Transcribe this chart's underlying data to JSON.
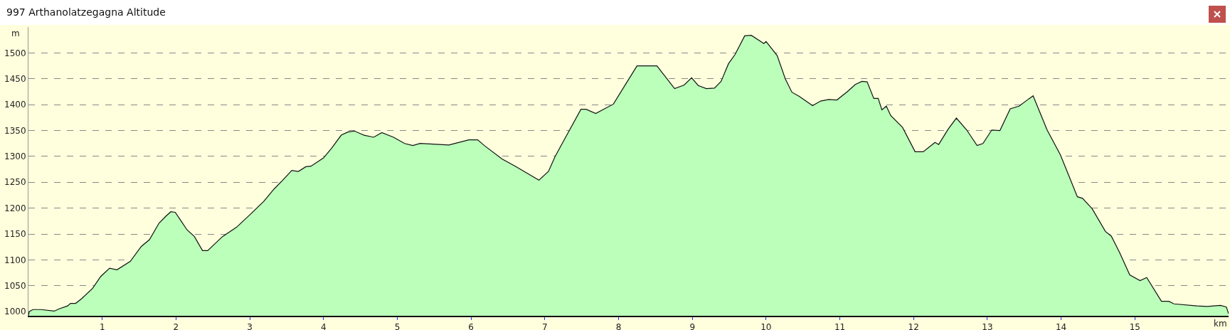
{
  "chart_data": {
    "type": "area",
    "title": "997 Arthanolatzegagna Altitude",
    "xlabel": "km",
    "ylabel": "m",
    "x": [
      0,
      0.01,
      0.06,
      0.17,
      0.35,
      0.41,
      0.53,
      0.57,
      0.64,
      0.72,
      0.87,
      0.98,
      1.1,
      1.2,
      1.38,
      1.53,
      1.64,
      1.77,
      1.86,
      1.93,
      1.99,
      2.15,
      2.25,
      2.36,
      2.43,
      2.63,
      2.82,
      3.0,
      3.19,
      3.33,
      3.44,
      3.57,
      3.66,
      3.76,
      3.83,
      4.0,
      4.11,
      4.24,
      4.33,
      4.42,
      4.55,
      4.68,
      4.79,
      4.95,
      5.1,
      5.21,
      5.31,
      5.7,
      5.97,
      6.09,
      6.18,
      6.42,
      6.6,
      6.92,
      7.05,
      7.14,
      7.29,
      7.49,
      7.56,
      7.69,
      7.93,
      8.12,
      8.25,
      8.52,
      8.76,
      8.89,
      8.99,
      9.08,
      9.19,
      9.3,
      9.39,
      9.49,
      9.58,
      9.71,
      9.8,
      9.97,
      10.0,
      10.15,
      10.26,
      10.35,
      10.45,
      10.63,
      10.74,
      10.85,
      10.96,
      11.1,
      11.21,
      11.3,
      11.37,
      11.46,
      11.52,
      11.57,
      11.63,
      11.69,
      11.85,
      12.02,
      12.13,
      12.29,
      12.34,
      12.47,
      12.58,
      12.72,
      12.86,
      12.94,
      13.06,
      13.17,
      13.31,
      13.43,
      13.56,
      13.62,
      13.81,
      13.99,
      14.22,
      14.29,
      14.42,
      14.6,
      14.68,
      14.79,
      14.93,
      15.07,
      15.16,
      15.36,
      15.46,
      15.53,
      15.84,
      15.98,
      16.16,
      16.24,
      16.27
    ],
    "series": [
      {
        "color": "#bbffbb",
        "values": [
          992,
          1000,
          1004,
          1004,
          1001,
          1005,
          1011,
          1016,
          1016,
          1025,
          1045,
          1068,
          1084,
          1081,
          1097,
          1126,
          1139,
          1171,
          1184,
          1193,
          1192,
          1158,
          1145,
          1118,
          1118,
          1145,
          1163,
          1187,
          1213,
          1237,
          1253,
          1273,
          1271,
          1280,
          1281,
          1297,
          1316,
          1341,
          1347,
          1349,
          1341,
          1337,
          1346,
          1337,
          1325,
          1321,
          1325,
          1322,
          1332,
          1332,
          1321,
          1295,
          1281,
          1254,
          1271,
          1300,
          1339,
          1391,
          1391,
          1383,
          1401,
          1445,
          1475,
          1475,
          1431,
          1438,
          1452,
          1437,
          1431,
          1432,
          1445,
          1479,
          1497,
          1533,
          1534,
          1518,
          1522,
          1495,
          1450,
          1424,
          1416,
          1398,
          1407,
          1410,
          1409,
          1425,
          1439,
          1445,
          1444,
          1412,
          1412,
          1390,
          1397,
          1379,
          1356,
          1309,
          1309,
          1327,
          1323,
          1353,
          1374,
          1351,
          1321,
          1325,
          1351,
          1350,
          1392,
          1397,
          1411,
          1417,
          1351,
          1303,
          1222,
          1219,
          1199,
          1155,
          1146,
          1115,
          1071,
          1060,
          1066,
          1020,
          1020,
          1015,
          1011,
          1010,
          1012,
          1009,
          996
        ]
      }
    ],
    "xlim": [
      0,
      16.27
    ],
    "xticks": [
      1,
      2,
      3,
      4,
      5,
      6,
      7,
      8,
      9,
      10,
      11,
      12,
      13,
      14,
      15
    ],
    "ylim": [
      992,
      1550
    ],
    "yticks": [
      1000,
      1050,
      1100,
      1150,
      1200,
      1250,
      1300,
      1350,
      1400,
      1450,
      1500
    ],
    "grid": "y"
  }
}
